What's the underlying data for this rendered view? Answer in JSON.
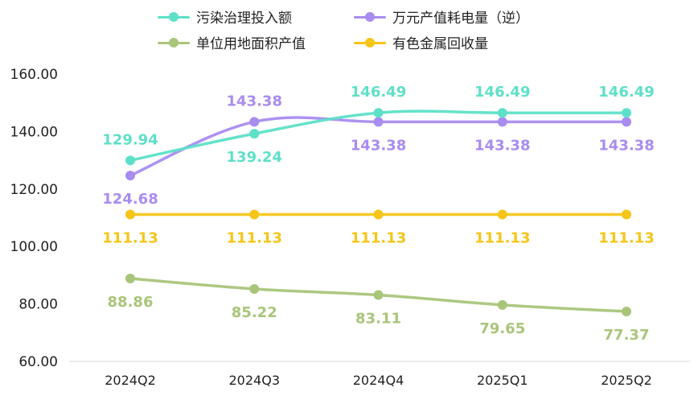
{
  "chart_data": {
    "type": "line",
    "categories": [
      "2024Q2",
      "2024Q3",
      "2024Q4",
      "2025Q1",
      "2025Q2"
    ],
    "ylim": [
      60,
      160
    ],
    "yticks": [
      "60.00",
      "80.00",
      "100.00",
      "120.00",
      "140.00",
      "160.00"
    ],
    "grid": false,
    "legend_position": "top",
    "series": [
      {
        "name": "污染治理投入额",
        "color": "#5ee0c8",
        "values": [
          129.94,
          139.24,
          146.49,
          146.49,
          146.49
        ],
        "labels": [
          "129.94",
          "139.24",
          "146.49",
          "146.49",
          "146.49"
        ],
        "label_pos": [
          "above",
          "below",
          "above",
          "above",
          "above"
        ]
      },
      {
        "name": "万元产值耗电量（逆）",
        "color": "#a98cf0",
        "values": [
          124.68,
          143.38,
          143.38,
          143.38,
          143.38
        ],
        "labels": [
          "124.68",
          "143.38",
          "143.38",
          "143.38",
          "143.38"
        ],
        "label_pos": [
          "below",
          "above",
          "below",
          "below",
          "below"
        ]
      },
      {
        "name": "单位用地面积产值",
        "color": "#a9c57a",
        "values": [
          88.86,
          85.22,
          83.11,
          79.65,
          77.37
        ],
        "labels": [
          "88.86",
          "85.22",
          "83.11",
          "79.65",
          "77.37"
        ],
        "label_pos": [
          "below",
          "below",
          "below",
          "below",
          "below"
        ]
      },
      {
        "name": "有色金属回收量",
        "color": "#f5c518",
        "values": [
          111.13,
          111.13,
          111.13,
          111.13,
          111.13
        ],
        "labels": [
          "111.13",
          "111.13",
          "111.13",
          "111.13",
          "111.13"
        ],
        "label_pos": [
          "below",
          "below",
          "below",
          "below",
          "below"
        ]
      }
    ]
  }
}
